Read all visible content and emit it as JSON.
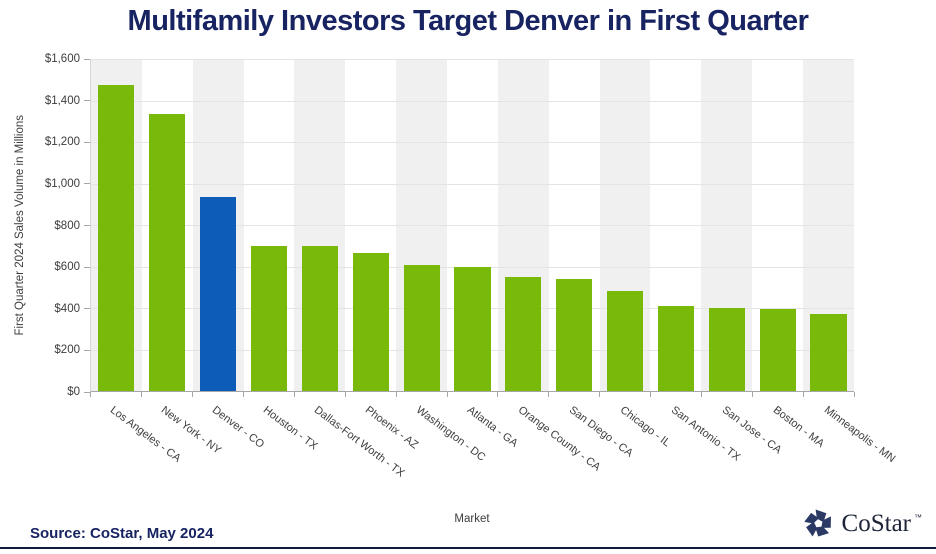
{
  "title": "Multifamily Investors Target Denver in First Quarter",
  "chart_data": {
    "type": "bar",
    "title": "Multifamily Investors Target Denver in First Quarter",
    "xlabel": "Market",
    "ylabel": "First Quarter 2024 Sales Volume in Millions",
    "categories": [
      "Los Angeles - CA",
      "New York - NY",
      "Denver - CO",
      "Houston - TX",
      "Dallas-Fort Worth - TX",
      "Phoenix - AZ",
      "Washington - DC",
      "Atlanta - GA",
      "Orange County - CA",
      "San Diego - CA",
      "Chicago - IL",
      "San Antonio - TX",
      "San Jose - CA",
      "Boston - MA",
      "Minneapolis - MN"
    ],
    "values": [
      1475,
      1335,
      935,
      700,
      700,
      665,
      605,
      600,
      550,
      540,
      480,
      410,
      400,
      395,
      370
    ],
    "units": "USD millions",
    "ylim": [
      0,
      1600
    ],
    "ytick_labels": [
      "$0",
      "$200",
      "$400",
      "$600",
      "$800",
      "$1,000",
      "$1,200",
      "$1,400",
      "$1,600"
    ],
    "bar_color": "#78b90a",
    "highlight_index": 2,
    "highlight_color": "#0d5cb7",
    "highlight_category": "Denver - CO",
    "grid": "horizontal",
    "legend": "none",
    "plot_background": "alternating vertical stripes",
    "stripe_color": "#f0f0f0"
  },
  "footer": {
    "source": "Source: CoStar, May 2024",
    "logo_text": "CoStar",
    "logo_tm": "™"
  },
  "colors": {
    "title_navy": "#182362",
    "bar_green": "#78b90a",
    "bar_blue": "#0d5cb7",
    "stripe_gray": "#f0f0f0",
    "bottom_rule": "#111a3c",
    "logo_navy": "#2b3a64"
  }
}
